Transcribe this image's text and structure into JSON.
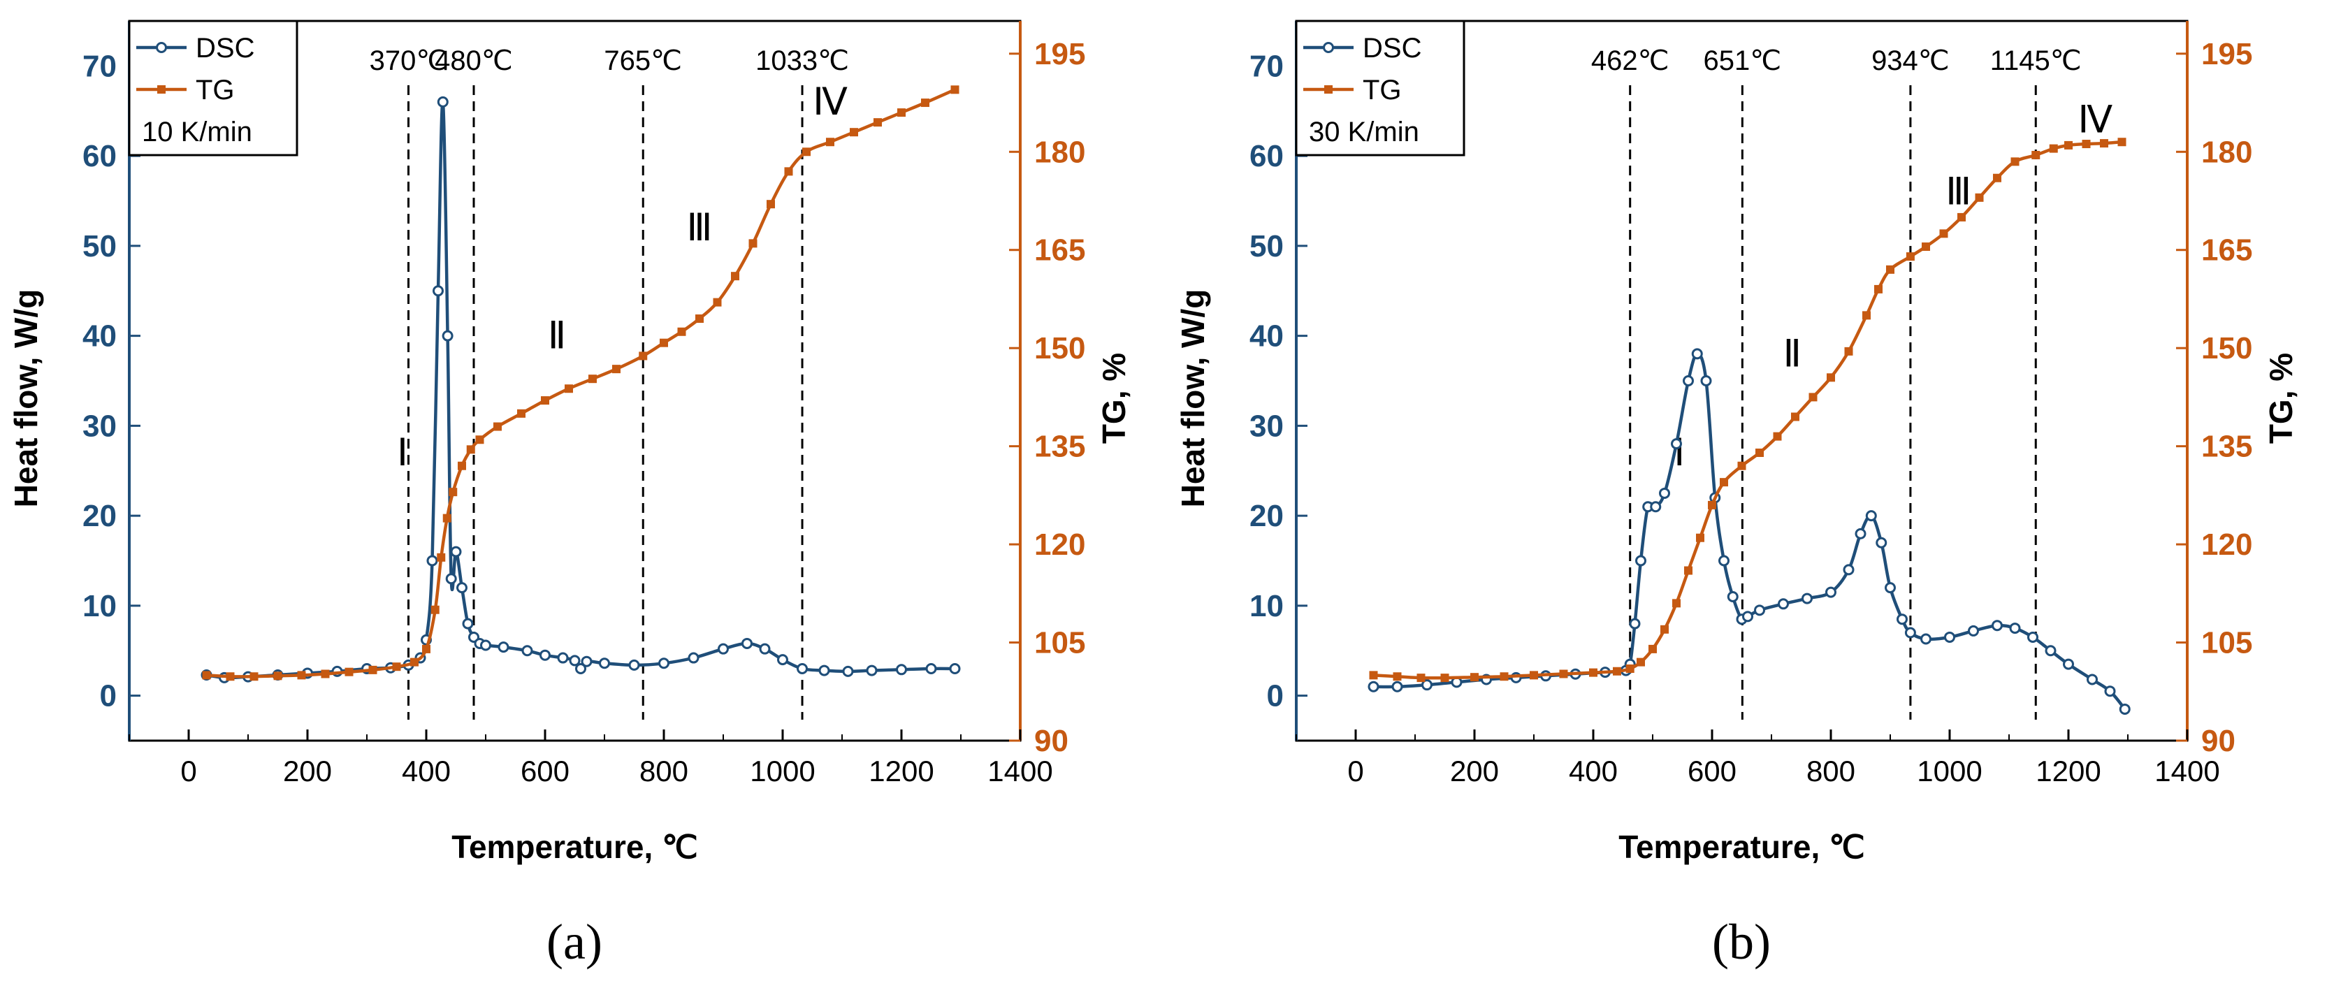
{
  "chart_data": [
    {
      "type": "line",
      "panel_label": "(a)",
      "rate_label": "10 K/min",
      "xlabel": "Temperature, ℃",
      "ylabel_left": "Heat flow, W/g",
      "ylabel_right": "TG, %",
      "xlim": [
        -100,
        1400
      ],
      "ylim_left": [
        -5,
        75
      ],
      "ylim_right": [
        90,
        200
      ],
      "x_ticks": [
        "0",
        "200",
        "400",
        "600",
        "800",
        "1000",
        "1200",
        "1400"
      ],
      "y_left_ticks": [
        "0",
        "10",
        "20",
        "30",
        "40",
        "50",
        "60",
        "70"
      ],
      "y_right_ticks": [
        "90",
        "105",
        "120",
        "135",
        "150",
        "165",
        "180",
        "195"
      ],
      "legend": [
        "DSC",
        "TG"
      ],
      "colors": {
        "DSC": "#1f4e79",
        "TG": "#c65911"
      },
      "stage_lines": [
        {
          "x": 370,
          "label": "370℃"
        },
        {
          "x": 480,
          "label": "480℃"
        },
        {
          "x": 765,
          "label": "765℃"
        },
        {
          "x": 1033,
          "label": "1033℃"
        }
      ],
      "stages": [
        {
          "label": "Ⅰ",
          "x": 360,
          "y_left": 27
        },
        {
          "label": "Ⅱ",
          "x": 620,
          "y_left": 40
        },
        {
          "label": "Ⅲ",
          "x": 860,
          "y_left": 52
        },
        {
          "label": "Ⅳ",
          "x": 1080,
          "y_left": 66
        }
      ],
      "series": [
        {
          "name": "DSC",
          "axis": "left",
          "x": [
            30,
            60,
            100,
            150,
            200,
            250,
            300,
            340,
            370,
            390,
            400,
            410,
            420,
            428,
            436,
            442,
            450,
            460,
            470,
            480,
            490,
            500,
            530,
            570,
            600,
            630,
            650,
            660,
            670,
            700,
            750,
            800,
            850,
            900,
            940,
            970,
            1000,
            1033,
            1070,
            1110,
            1150,
            1200,
            1250,
            1290
          ],
          "values": [
            2.3,
            2.0,
            2.1,
            2.3,
            2.5,
            2.7,
            3.0,
            3.1,
            3.4,
            4.2,
            6.2,
            15.0,
            45.0,
            66.0,
            40.0,
            13.0,
            16.0,
            12.0,
            8.0,
            6.5,
            5.8,
            5.6,
            5.4,
            5.0,
            4.5,
            4.2,
            3.9,
            3.0,
            3.8,
            3.6,
            3.4,
            3.6,
            4.2,
            5.2,
            5.8,
            5.2,
            4.0,
            3.0,
            2.8,
            2.7,
            2.8,
            2.9,
            3.0,
            3.0
          ]
        },
        {
          "name": "TG",
          "axis": "right",
          "x": [
            30,
            70,
            110,
            150,
            190,
            230,
            270,
            310,
            350,
            380,
            400,
            415,
            425,
            435,
            445,
            460,
            475,
            490,
            520,
            560,
            600,
            640,
            680,
            720,
            765,
            800,
            830,
            860,
            890,
            920,
            950,
            980,
            1010,
            1040,
            1080,
            1120,
            1160,
            1200,
            1240,
            1290
          ],
          "values": [
            100.0,
            99.8,
            99.8,
            99.9,
            100.0,
            100.2,
            100.5,
            100.8,
            101.3,
            102.0,
            104.0,
            110.0,
            118.0,
            124.0,
            128.0,
            132.0,
            134.5,
            136.0,
            138.0,
            140.0,
            142.0,
            143.8,
            145.3,
            146.8,
            148.8,
            150.8,
            152.5,
            154.5,
            157.0,
            161.0,
            166.0,
            172.0,
            177.0,
            180.0,
            181.5,
            183.0,
            184.5,
            186.0,
            187.5,
            189.5
          ]
        }
      ]
    },
    {
      "type": "line",
      "panel_label": "(b)",
      "rate_label": "30 K/min",
      "xlabel": "Temperature, ℃",
      "ylabel_left": "Heat flow, W/g",
      "ylabel_right": "TG, %",
      "xlim": [
        -100,
        1400
      ],
      "ylim_left": [
        -5,
        75
      ],
      "ylim_right": [
        90,
        200
      ],
      "x_ticks": [
        "0",
        "200",
        "400",
        "600",
        "800",
        "1000",
        "1200",
        "1400"
      ],
      "y_left_ticks": [
        "0",
        "10",
        "20",
        "30",
        "40",
        "50",
        "60",
        "70"
      ],
      "y_right_ticks": [
        "90",
        "105",
        "120",
        "135",
        "150",
        "165",
        "180",
        "195"
      ],
      "legend": [
        "DSC",
        "TG"
      ],
      "colors": {
        "DSC": "#1f4e79",
        "TG": "#c65911"
      },
      "stage_lines": [
        {
          "x": 462,
          "label": "462℃"
        },
        {
          "x": 651,
          "label": "651℃"
        },
        {
          "x": 934,
          "label": "934℃"
        },
        {
          "x": 1145,
          "label": "1145℃"
        }
      ],
      "stages": [
        {
          "label": "Ⅰ",
          "x": 545,
          "y_left": 27
        },
        {
          "label": "Ⅱ",
          "x": 735,
          "y_left": 38
        },
        {
          "label": "Ⅲ",
          "x": 1015,
          "y_left": 56
        },
        {
          "label": "Ⅳ",
          "x": 1245,
          "y_left": 64
        }
      ],
      "series": [
        {
          "name": "DSC",
          "axis": "left",
          "x": [
            30,
            70,
            120,
            170,
            220,
            270,
            320,
            370,
            420,
            455,
            462,
            470,
            480,
            492,
            505,
            520,
            540,
            560,
            575,
            590,
            605,
            620,
            635,
            650,
            660,
            680,
            720,
            760,
            800,
            830,
            850,
            868,
            885,
            900,
            920,
            934,
            960,
            1000,
            1040,
            1080,
            1110,
            1140,
            1170,
            1200,
            1240,
            1270,
            1295
          ],
          "values": [
            1.0,
            1.0,
            1.2,
            1.5,
            1.8,
            2.0,
            2.2,
            2.4,
            2.6,
            2.8,
            3.5,
            8.0,
            15.0,
            21.0,
            21.0,
            22.5,
            28.0,
            35.0,
            38.0,
            35.0,
            22.0,
            15.0,
            11.0,
            8.5,
            8.8,
            9.5,
            10.2,
            10.8,
            11.5,
            14.0,
            18.0,
            20.0,
            17.0,
            12.0,
            8.5,
            7.0,
            6.3,
            6.5,
            7.2,
            7.8,
            7.5,
            6.5,
            5.0,
            3.5,
            1.8,
            0.5,
            -1.5
          ]
        },
        {
          "name": "TG",
          "axis": "right",
          "x": [
            30,
            70,
            110,
            150,
            200,
            250,
            300,
            350,
            400,
            440,
            462,
            480,
            500,
            520,
            540,
            560,
            580,
            600,
            620,
            650,
            680,
            710,
            740,
            770,
            800,
            830,
            860,
            880,
            900,
            934,
            960,
            990,
            1020,
            1050,
            1080,
            1110,
            1145,
            1175,
            1200,
            1230,
            1260,
            1290
          ],
          "values": [
            100.0,
            99.8,
            99.6,
            99.6,
            99.7,
            99.8,
            100.0,
            100.2,
            100.4,
            100.6,
            101.0,
            102.0,
            104.0,
            107.0,
            111.0,
            116.0,
            121.0,
            126.0,
            129.5,
            132.0,
            134.0,
            136.5,
            139.5,
            142.5,
            145.5,
            149.5,
            155.0,
            159.0,
            162.0,
            164.0,
            165.5,
            167.5,
            170.0,
            173.0,
            176.0,
            178.5,
            179.5,
            180.5,
            181.0,
            181.2,
            181.3,
            181.5
          ]
        }
      ]
    }
  ]
}
